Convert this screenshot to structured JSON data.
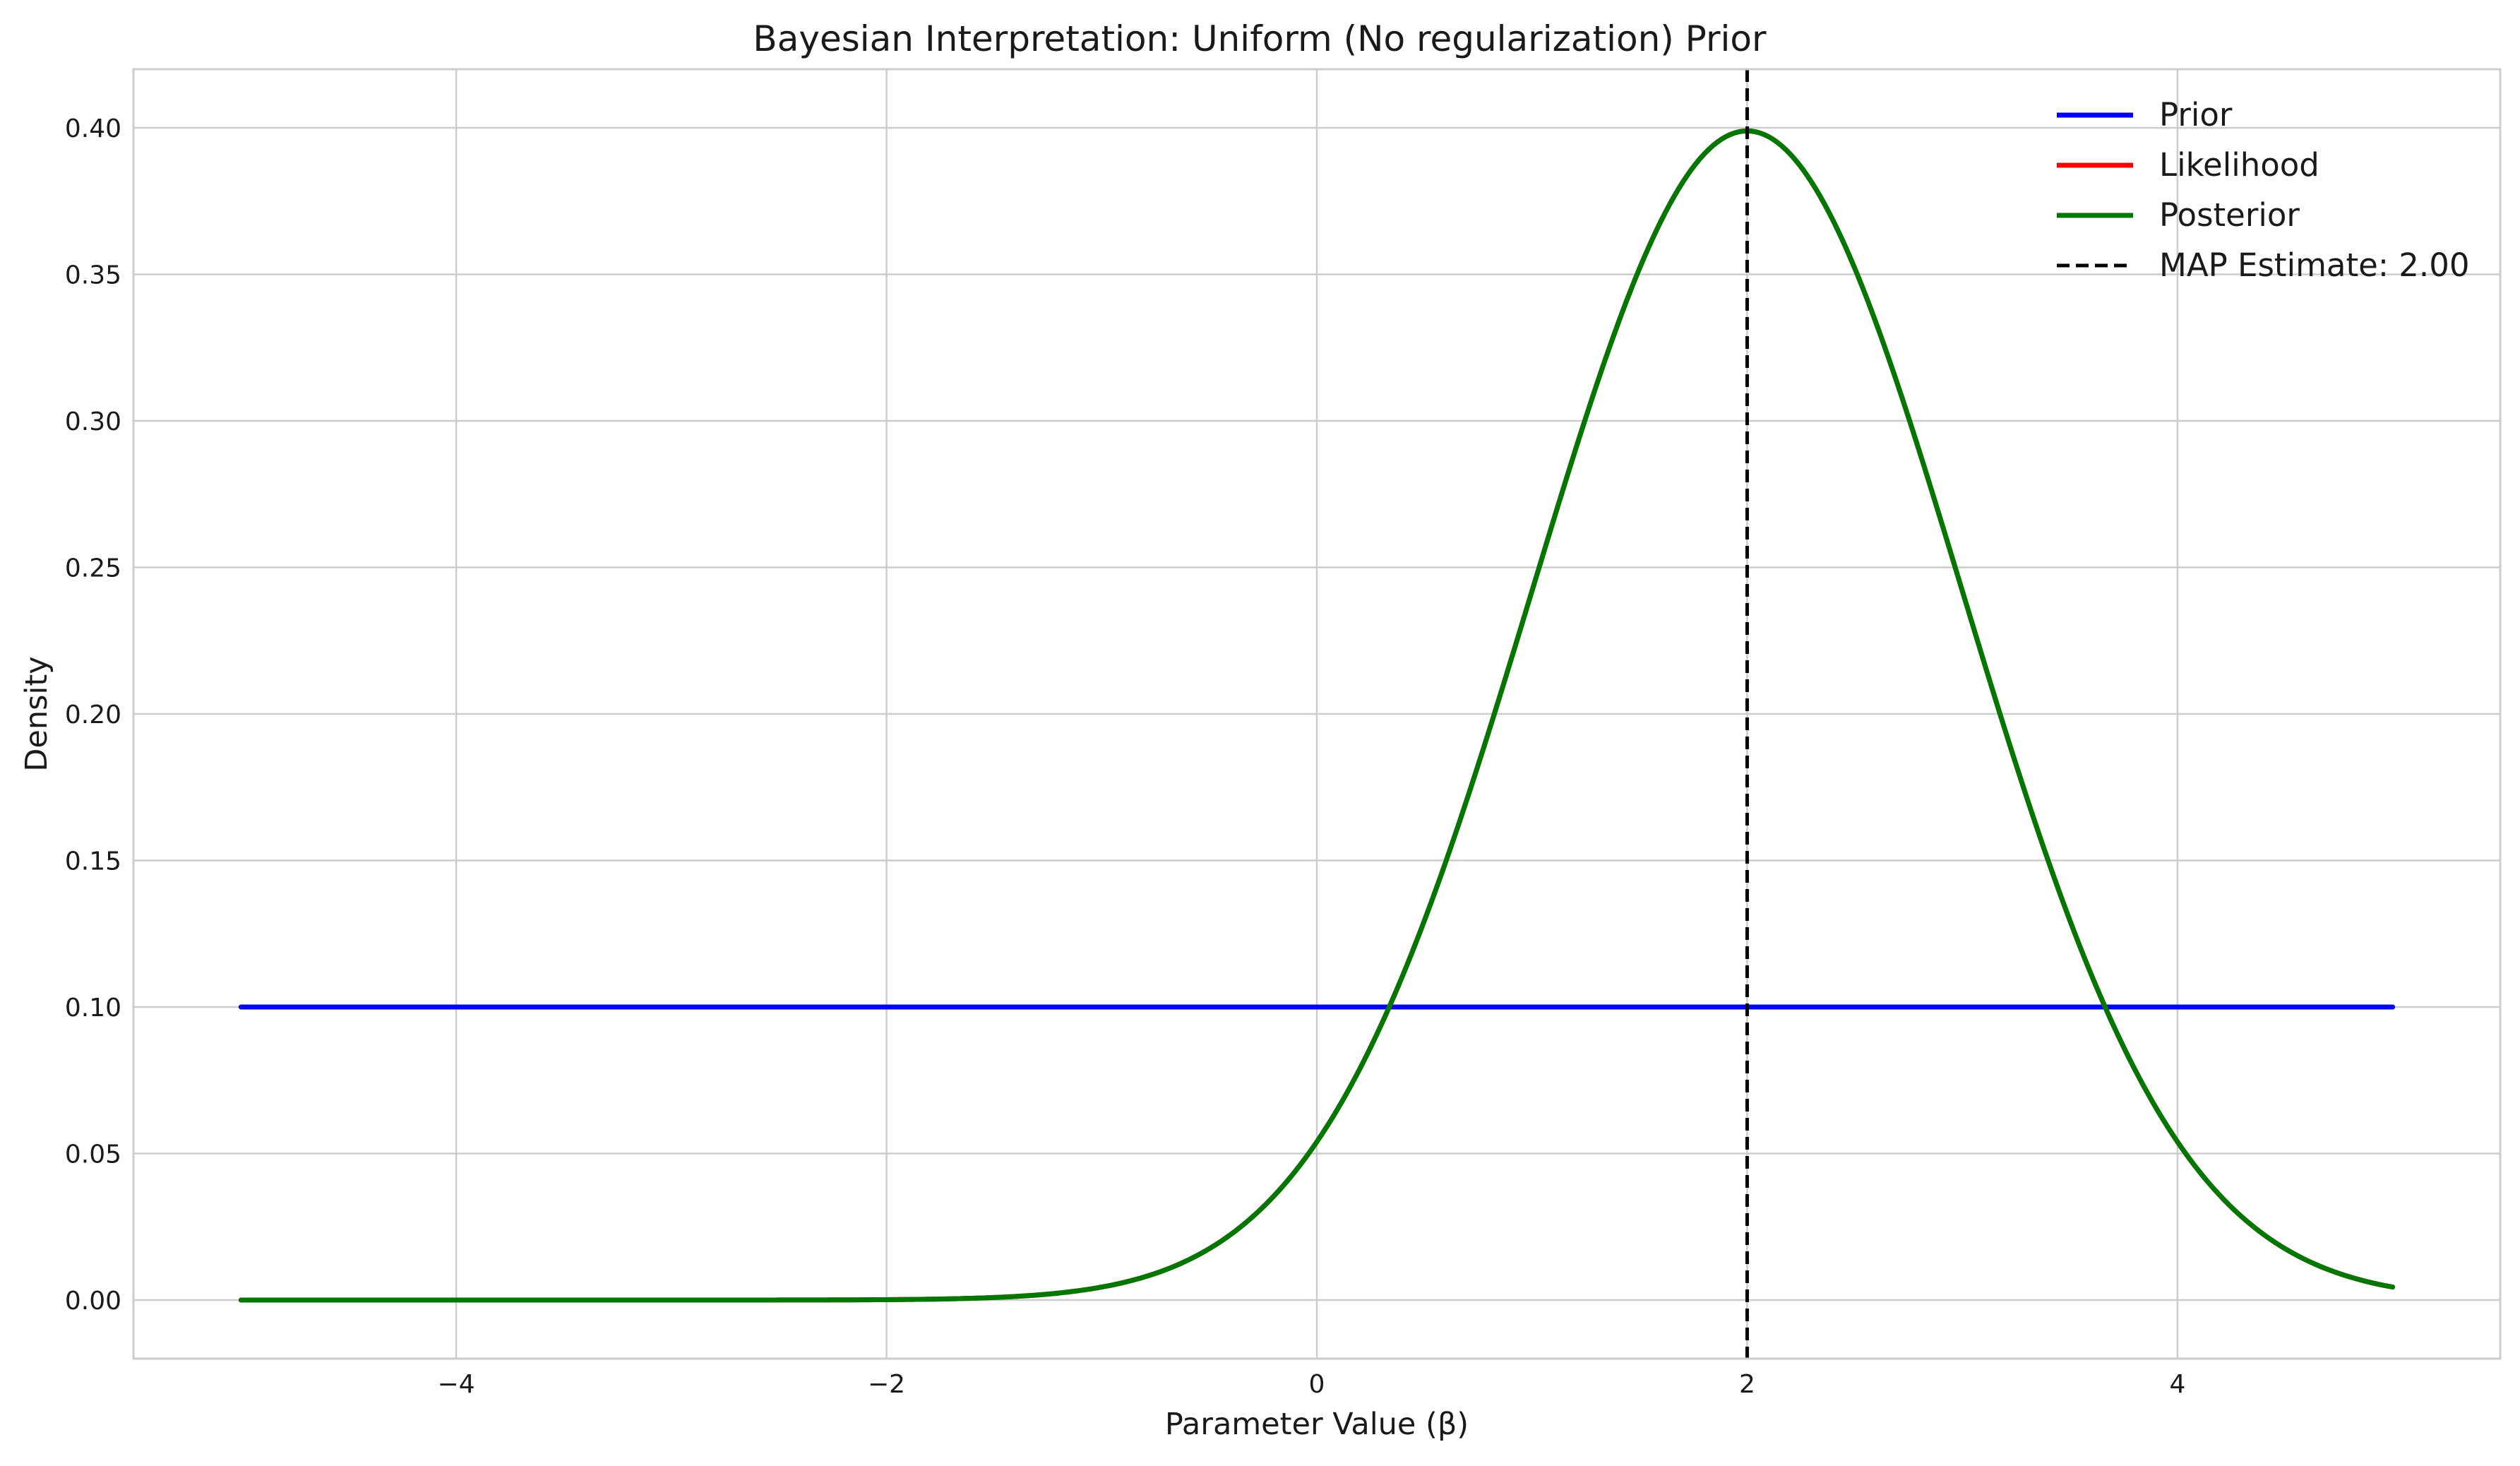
{
  "chart_data": {
    "type": "line",
    "title": "Bayesian Interpretation: Uniform (No regularization) Prior",
    "xlabel": "Parameter Value (β)",
    "ylabel": "Density",
    "xlim": [
      -5.5,
      5.5
    ],
    "ylim": [
      -0.02,
      0.42
    ],
    "x_ticks": [
      -4,
      -2,
      0,
      2,
      4
    ],
    "x_tick_labels": [
      "−4",
      "−2",
      "0",
      "2",
      "4"
    ],
    "y_ticks": [
      0.0,
      0.05,
      0.1,
      0.15,
      0.2,
      0.25,
      0.3,
      0.35,
      0.4
    ],
    "y_tick_labels": [
      "0.00",
      "0.05",
      "0.10",
      "0.15",
      "0.20",
      "0.25",
      "0.30",
      "0.35",
      "0.40"
    ],
    "grid": true,
    "legend_position": "top-right",
    "x_domain": [
      -5,
      5
    ],
    "series": [
      {
        "name": "Prior",
        "color": "#0000ff",
        "style": "solid",
        "distribution": "uniform",
        "x": [
          -5,
          5
        ],
        "y": [
          0.1,
          0.1
        ]
      },
      {
        "name": "Likelihood",
        "color": "#ff0000",
        "style": "solid",
        "distribution": "normal",
        "mean": 2,
        "sd": 1,
        "x": [
          -5,
          -4,
          -3,
          -2,
          -1,
          0,
          0.5,
          1,
          1.5,
          2,
          2.5,
          3,
          3.5,
          4,
          4.5,
          5
        ],
        "y": [
          0.0,
          0.0,
          0.0,
          0.0001,
          0.0044,
          0.054,
          0.1295,
          0.242,
          0.3521,
          0.3989,
          0.3521,
          0.242,
          0.1295,
          0.054,
          0.0175,
          0.0044
        ]
      },
      {
        "name": "Posterior",
        "color": "#007700",
        "style": "solid",
        "distribution": "normal",
        "mean": 2,
        "sd": 1,
        "x": [
          -5,
          -4,
          -3,
          -2,
          -1,
          0,
          0.5,
          1,
          1.5,
          2,
          2.5,
          3,
          3.5,
          4,
          4.5,
          5
        ],
        "y": [
          0.0,
          0.0,
          0.0,
          0.0001,
          0.0044,
          0.054,
          0.1295,
          0.242,
          0.3521,
          0.3989,
          0.3521,
          0.242,
          0.1295,
          0.054,
          0.0175,
          0.0044
        ]
      }
    ],
    "vline": {
      "name": "MAP Estimate: 2.00",
      "x": 2.0,
      "color": "#000000",
      "style": "dashed"
    }
  }
}
